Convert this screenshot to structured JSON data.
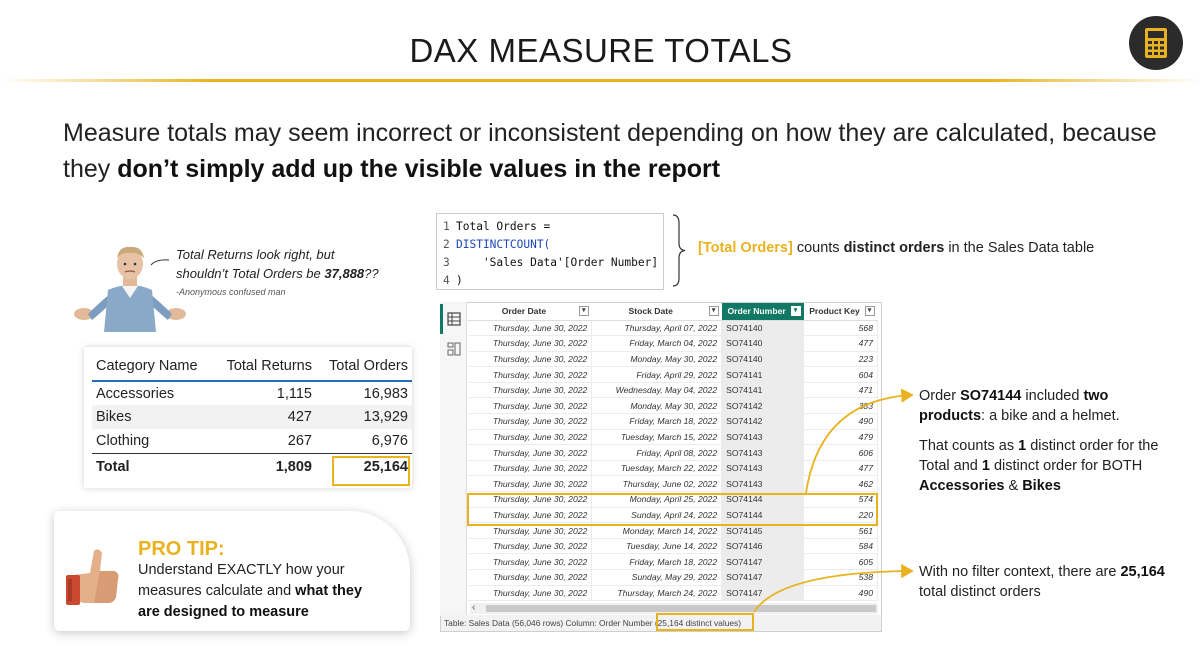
{
  "title": "DAX MEASURE TOTALS",
  "headline": {
    "plain": "Measure totals may seem incorrect or inconsistent depending on how they are calculated, because they ",
    "bold": "don’t simply add up the visible values in the report"
  },
  "quote": {
    "line1": "Total Returns look right, but",
    "line2_pre": "shouldn’t Total Orders be ",
    "line2_bold": "37,888",
    "line2_post": "??",
    "author": "-Anonymous confused man"
  },
  "summary_table": {
    "headers": [
      "Category Name",
      "Total Returns",
      "Total Orders"
    ],
    "rows": [
      [
        "Accessories",
        "1,115",
        "16,983"
      ],
      [
        "Bikes",
        "427",
        "13,929"
      ],
      [
        "Clothing",
        "267",
        "6,976"
      ]
    ],
    "total": [
      "Total",
      "1,809",
      "25,164"
    ]
  },
  "pro_tip": {
    "title": "PRO TIP:",
    "line1": "Understand EXACTLY how your",
    "line2_pre": "measures calculate and ",
    "line2_bold": "what they",
    "line3_bold": "are designed to measure"
  },
  "code": {
    "lines": [
      {
        "n": "1",
        "text": "Total Orders ="
      },
      {
        "n": "2",
        "text": "DISTINCTCOUNT("
      },
      {
        "n": "3",
        "text": "    'Sales Data'[Order Number]"
      },
      {
        "n": "4",
        "text": ")"
      }
    ]
  },
  "code_desc": {
    "measure": "[Total Orders]",
    "mid": " counts ",
    "bold": "distinct orders",
    "post": " in the Sales Data table"
  },
  "data_view": {
    "columns": [
      "Order Date",
      "Stock Date",
      "Order Number",
      "Product Key"
    ],
    "selected_column": "Order Number",
    "rows": [
      [
        "Thursday, June 30, 2022",
        "Thursday, April 07, 2022",
        "SO74140",
        "568"
      ],
      [
        "Thursday, June 30, 2022",
        "Friday, March 04, 2022",
        "SO74140",
        "477"
      ],
      [
        "Thursday, June 30, 2022",
        "Monday, May 30, 2022",
        "SO74140",
        "223"
      ],
      [
        "Thursday, June 30, 2022",
        "Friday, April 29, 2022",
        "SO74141",
        "604"
      ],
      [
        "Thursday, June 30, 2022",
        "Wednesday, May 04, 2022",
        "SO74141",
        "471"
      ],
      [
        "Thursday, June 30, 2022",
        "Monday, May 30, 2022",
        "SO74142",
        "383"
      ],
      [
        "Thursday, June 30, 2022",
        "Friday, March 18, 2022",
        "SO74142",
        "490"
      ],
      [
        "Thursday, June 30, 2022",
        "Tuesday, March 15, 2022",
        "SO74143",
        "479"
      ],
      [
        "Thursday, June 30, 2022",
        "Friday, April 08, 2022",
        "SO74143",
        "606"
      ],
      [
        "Thursday, June 30, 2022",
        "Tuesday, March 22, 2022",
        "SO74143",
        "477"
      ],
      [
        "Thursday, June 30, 2022",
        "Thursday, June 02, 2022",
        "SO74143",
        "462"
      ],
      [
        "Thursday, June 30, 2022",
        "Monday, April 25, 2022",
        "SO74144",
        "574"
      ],
      [
        "Thursday, June 30, 2022",
        "Sunday, April 24, 2022",
        "SO74144",
        "220"
      ],
      [
        "Thursday, June 30, 2022",
        "Monday, March 14, 2022",
        "SO74145",
        "561"
      ],
      [
        "Thursday, June 30, 2022",
        "Tuesday, June 14, 2022",
        "SO74146",
        "584"
      ],
      [
        "Thursday, June 30, 2022",
        "Friday, March 18, 2022",
        "SO74147",
        "605"
      ],
      [
        "Thursday, June 30, 2022",
        "Sunday, May 29, 2022",
        "SO74147",
        "538"
      ],
      [
        "Thursday, June 30, 2022",
        "Thursday, March 24, 2022",
        "SO74147",
        "490"
      ]
    ],
    "status_pre": "Table: Sales Data (56,046 rows) Column: Order Number ",
    "status_box": "(25,164 distinct values)"
  },
  "callouts": {
    "c1_pre": "Order ",
    "c1_bold1": "SO74144",
    "c1_mid": " included ",
    "c1_bold2": "two products",
    "c1_post": ": a bike and a helmet.",
    "c2_pre": "That counts as ",
    "c2_bold1": "1",
    "c2_mid": " distinct order for the Total and ",
    "c2_bold2": "1",
    "c2_mid2": " distinct order for BOTH ",
    "c2_bold3": "Accessories",
    "c2_amp": " & ",
    "c2_bold4": "Bikes",
    "c3_pre": "With no filter context, there are ",
    "c3_bold": "25,164",
    "c3_post": " total distinct orders"
  },
  "colors": {
    "accent": "#e9b220",
    "table_header_rule": "#1f6fbf",
    "selected_column": "#117865",
    "code_function": "#1e47b8"
  },
  "icons": [
    "calculator-icon",
    "table-view-icon",
    "model-view-icon",
    "thumbs-up-icon",
    "person-shrug-icon",
    "curly-brace-icon",
    "dropdown-icon",
    "scroll-left-icon"
  ]
}
